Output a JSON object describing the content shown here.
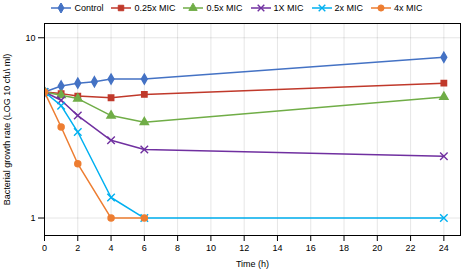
{
  "chart_data": {
    "type": "line",
    "xlabel": "Time (h)",
    "ylabel": "Bacterial growth rate (LOG 10 cfu\\ ml)",
    "log": "y",
    "grid": true,
    "legend": "top",
    "xlim": [
      0,
      25
    ],
    "xticks": [
      0,
      2,
      4,
      6,
      8,
      10,
      12,
      14,
      16,
      18,
      20,
      22,
      24
    ],
    "ylim": [
      0.8,
      12
    ],
    "yticks": [
      1,
      10
    ],
    "series": [
      {
        "name": "Control",
        "color": "#4472C4",
        "marker": "diamond",
        "x": [
          0,
          1,
          2,
          3,
          4,
          6,
          24
        ],
        "values": [
          5.0,
          5.4,
          5.6,
          5.7,
          5.9,
          5.9,
          7.8
        ]
      },
      {
        "name": "0.25x MIC",
        "color": "#C0392B",
        "marker": "square",
        "x": [
          0,
          1,
          2,
          4,
          6,
          24
        ],
        "values": [
          5.0,
          4.9,
          4.75,
          4.65,
          4.85,
          5.6
        ]
      },
      {
        "name": "0.5x MIC",
        "color": "#70AD47",
        "marker": "triangle",
        "x": [
          0,
          1,
          2,
          4,
          6,
          24
        ],
        "values": [
          5.0,
          4.8,
          4.6,
          3.7,
          3.4,
          4.7
        ]
      },
      {
        "name": "1X MIC",
        "color": "#7030A0",
        "marker": "x",
        "x": [
          0,
          1,
          2,
          4,
          6,
          24
        ],
        "values": [
          5.0,
          4.5,
          3.7,
          2.7,
          2.4,
          2.2
        ]
      },
      {
        "name": "2x MIC",
        "color": "#00B0F0",
        "marker": "x",
        "x": [
          0,
          1,
          2,
          4,
          6,
          24
        ],
        "values": [
          5.0,
          4.2,
          3.0,
          1.3,
          1.0,
          1.0
        ]
      },
      {
        "name": "4x MIC",
        "color": "#ED7D31",
        "marker": "circle",
        "x": [
          0,
          1,
          2,
          4,
          6
        ],
        "values": [
          5.0,
          3.2,
          2.0,
          1.0,
          1.0
        ]
      }
    ]
  }
}
